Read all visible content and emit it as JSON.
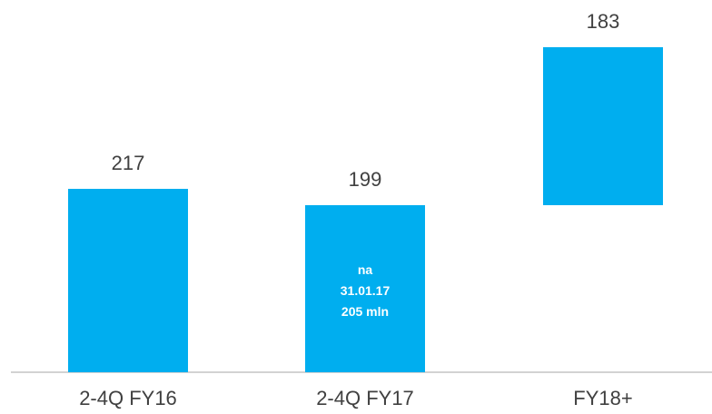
{
  "chart_data": {
    "type": "bar",
    "categories": [
      "2-4Q FY16",
      "2-4Q FY17",
      "FY18+"
    ],
    "values": [
      217,
      199,
      183
    ],
    "bar_color": "#00AEEF",
    "annotations": [
      {
        "category": "2-4Q FY17",
        "lines": [
          "na",
          "31.01.17",
          "205 mln"
        ]
      }
    ]
  }
}
